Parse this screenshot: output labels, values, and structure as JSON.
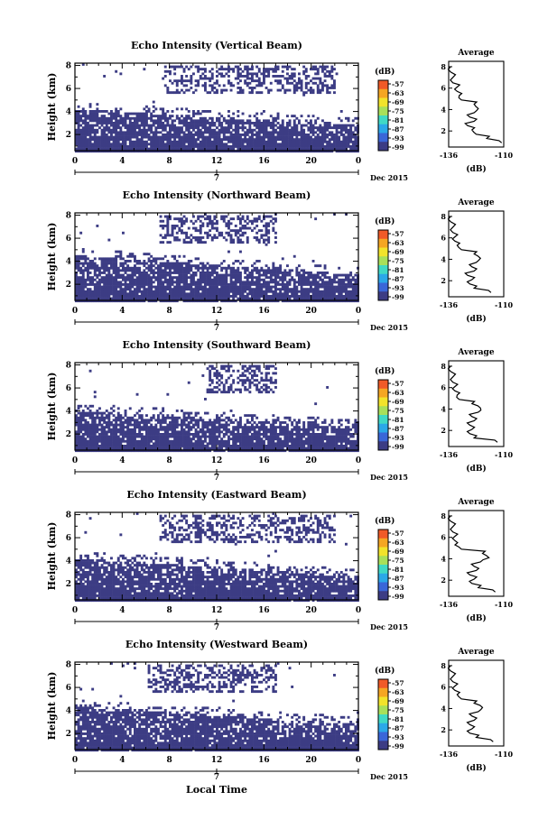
{
  "figure": {
    "xlabel_bottom": "Local Time",
    "date_label": "Dec 2015",
    "day_label": "7",
    "colorbar_unit": "(dB)",
    "colorbar_ticks": [
      "-57",
      "-63",
      "-69",
      "-75",
      "-81",
      "-87",
      "-93",
      "-99"
    ],
    "colorbar_colors": [
      "#f05a28",
      "#f5a623",
      "#f2e32b",
      "#a8e05a",
      "#40d9c4",
      "#2ba8e8",
      "#3a66d8",
      "#3c3c84"
    ],
    "main_color": "#3c3c84",
    "side_title": "Average",
    "side_xlabel": "(dB)"
  },
  "chart_data": [
    {
      "type": "heatmap",
      "title": "Echo Intensity (Vertical Beam)",
      "ylabel": "Height (km)",
      "xlabel": "Local Time",
      "x_ticks": [
        "0",
        "4",
        "8",
        "12",
        "16",
        "20",
        "0"
      ],
      "xlim": [
        0,
        24
      ],
      "y_ticks": [
        "2",
        "4",
        "6",
        "8"
      ],
      "ylim": [
        0.6,
        8.2
      ],
      "colorbar": {
        "unit": "(dB)",
        "ticks": [
          -57,
          -63,
          -69,
          -75,
          -81,
          -87,
          -93,
          -99
        ]
      },
      "regions": [
        {
          "layer": "boundary layer",
          "x": [
            0,
            24
          ],
          "ymin": 0.7,
          "ymax_start": 4.2,
          "ymax_end": 2.8
        },
        {
          "layer": "upper echoes",
          "x": [
            7.5,
            22
          ],
          "ymin": 5.6,
          "ymax": 8.0
        }
      ],
      "average_profile": {
        "title": "Average",
        "xlabel": "(dB)",
        "xlim": [
          -136,
          -110
        ],
        "x_ticks": [
          "-136",
          "-110"
        ],
        "height": [
          0.9,
          1.3,
          1.7,
          2.1,
          2.5,
          2.9,
          3.3,
          3.7,
          4.1,
          4.5,
          4.9,
          5.3,
          5.7,
          6.1,
          6.5,
          7.0,
          7.5,
          8.0
        ],
        "values": [
          -111,
          -118,
          -123,
          -125,
          -127,
          -124,
          -126,
          -124,
          -122,
          -124,
          -130,
          -131,
          -132,
          -132,
          -134,
          -134,
          -135,
          -135
        ]
      }
    },
    {
      "type": "heatmap",
      "title": "Echo Intensity (Northward Beam)",
      "ylabel": "Height (km)",
      "xlabel": "Local Time",
      "x_ticks": [
        "0",
        "4",
        "8",
        "12",
        "16",
        "20",
        "0"
      ],
      "xlim": [
        0,
        24
      ],
      "y_ticks": [
        "2",
        "4",
        "6",
        "8"
      ],
      "ylim": [
        0.6,
        8.2
      ],
      "colorbar": {
        "unit": "(dB)",
        "ticks": [
          -57,
          -63,
          -69,
          -75,
          -81,
          -87,
          -93,
          -99
        ]
      },
      "regions": [
        {
          "layer": "boundary layer",
          "x": [
            0,
            24
          ],
          "ymin": 0.7,
          "ymax_start": 4.5,
          "ymax_end": 2.8
        },
        {
          "layer": "upper echoes",
          "x": [
            7,
            17
          ],
          "ymin": 5.5,
          "ymax": 8.0
        }
      ],
      "average_profile": {
        "title": "Average",
        "xlabel": "(dB)",
        "xlim": [
          -136,
          -110
        ],
        "x_ticks": [
          "-136",
          "-110"
        ],
        "height": [
          0.9,
          1.3,
          1.7,
          2.1,
          2.5,
          2.9,
          3.3,
          3.7,
          4.1,
          4.5,
          4.9,
          5.3,
          5.7,
          6.1,
          6.5,
          7.0,
          7.5,
          8.0
        ],
        "values": [
          -116,
          -124,
          -126,
          -125,
          -127,
          -124,
          -125,
          -123,
          -121,
          -124,
          -130,
          -132,
          -133,
          -133,
          -134,
          -134,
          -135,
          -135
        ]
      }
    },
    {
      "type": "heatmap",
      "title": "Echo Intensity (Southward Beam)",
      "ylabel": "Height (km)",
      "xlabel": "Local Time",
      "x_ticks": [
        "0",
        "4",
        "8",
        "12",
        "16",
        "20",
        "0"
      ],
      "xlim": [
        0,
        24
      ],
      "y_ticks": [
        "2",
        "4",
        "6",
        "8"
      ],
      "ylim": [
        0.6,
        8.2
      ],
      "colorbar": {
        "unit": "(dB)",
        "ticks": [
          -57,
          -63,
          -69,
          -75,
          -81,
          -87,
          -93,
          -99
        ]
      },
      "regions": [
        {
          "layer": "boundary layer",
          "x": [
            0,
            24
          ],
          "ymin": 0.7,
          "ymax_start": 4.0,
          "ymax_end": 2.6
        },
        {
          "layer": "upper echoes",
          "x": [
            11,
            17
          ],
          "ymin": 5.6,
          "ymax": 8.0
        }
      ],
      "average_profile": {
        "title": "Average",
        "xlabel": "(dB)",
        "xlim": [
          -136,
          -110
        ],
        "x_ticks": [
          "-136",
          "-110"
        ],
        "height": [
          0.9,
          1.3,
          1.7,
          2.1,
          2.5,
          2.9,
          3.3,
          3.7,
          4.1,
          4.5,
          4.9,
          5.3,
          5.7,
          6.1,
          6.5,
          7.0,
          7.5,
          8.0
        ],
        "values": [
          -113,
          -124,
          -126,
          -125,
          -126,
          -124,
          -125,
          -122,
          -121,
          -125,
          -131,
          -132,
          -133,
          -133,
          -134,
          -134,
          -135,
          -135
        ]
      }
    },
    {
      "type": "heatmap",
      "title": "Echo Intensity (Eastward Beam)",
      "ylabel": "Height (km)",
      "xlabel": "Local Time",
      "x_ticks": [
        "0",
        "4",
        "8",
        "12",
        "16",
        "20",
        "0"
      ],
      "xlim": [
        0,
        24
      ],
      "y_ticks": [
        "2",
        "4",
        "6",
        "8"
      ],
      "ylim": [
        0.6,
        8.2
      ],
      "colorbar": {
        "unit": "(dB)",
        "ticks": [
          -57,
          -63,
          -69,
          -75,
          -81,
          -87,
          -93,
          -99
        ]
      },
      "regions": [
        {
          "layer": "boundary layer",
          "x": [
            0,
            24
          ],
          "ymin": 0.7,
          "ymax_start": 4.2,
          "ymax_end": 2.6
        },
        {
          "layer": "upper echoes",
          "x": [
            7,
            22
          ],
          "ymin": 5.5,
          "ymax": 8.0
        }
      ],
      "average_profile": {
        "title": "Average",
        "xlabel": "(dB)",
        "xlim": [
          -136,
          -110
        ],
        "x_ticks": [
          "-136",
          "-110"
        ],
        "height": [
          0.9,
          1.3,
          1.7,
          2.1,
          2.5,
          2.9,
          3.3,
          3.7,
          4.1,
          4.5,
          4.9,
          5.3,
          5.7,
          6.1,
          6.5,
          7.0,
          7.5,
          8.0
        ],
        "values": [
          -114,
          -122,
          -125,
          -124,
          -126,
          -123,
          -124,
          -121,
          -117,
          -120,
          -130,
          -133,
          -133,
          -133,
          -134,
          -134,
          -135,
          -135
        ]
      }
    },
    {
      "type": "heatmap",
      "title": "Echo Intensity (Westward Beam)",
      "ylabel": "Height (km)",
      "xlabel": "Local Time",
      "x_ticks": [
        "0",
        "4",
        "8",
        "12",
        "16",
        "20",
        "0"
      ],
      "xlim": [
        0,
        24
      ],
      "y_ticks": [
        "2",
        "4",
        "6",
        "8"
      ],
      "ylim": [
        0.6,
        8.2
      ],
      "colorbar": {
        "unit": "(dB)",
        "ticks": [
          -57,
          -63,
          -69,
          -75,
          -81,
          -87,
          -93,
          -99
        ]
      },
      "regions": [
        {
          "layer": "boundary layer",
          "x": [
            0,
            24
          ],
          "ymin": 0.7,
          "ymax_start": 4.3,
          "ymax_end": 2.8
        },
        {
          "layer": "upper echoes",
          "x": [
            6,
            17
          ],
          "ymin": 5.6,
          "ymax": 8.0
        }
      ],
      "average_profile": {
        "title": "Average",
        "xlabel": "(dB)",
        "xlim": [
          -136,
          -110
        ],
        "x_ticks": [
          "-136",
          "-110"
        ],
        "height": [
          0.9,
          1.3,
          1.7,
          2.1,
          2.5,
          2.9,
          3.3,
          3.7,
          4.1,
          4.5,
          4.9,
          5.3,
          5.7,
          6.1,
          6.5,
          7.0,
          7.5,
          8.0
        ],
        "values": [
          -115,
          -123,
          -126,
          -125,
          -126,
          -124,
          -125,
          -122,
          -120,
          -124,
          -130,
          -132,
          -133,
          -133,
          -134,
          -134,
          -135,
          -135
        ]
      }
    }
  ]
}
